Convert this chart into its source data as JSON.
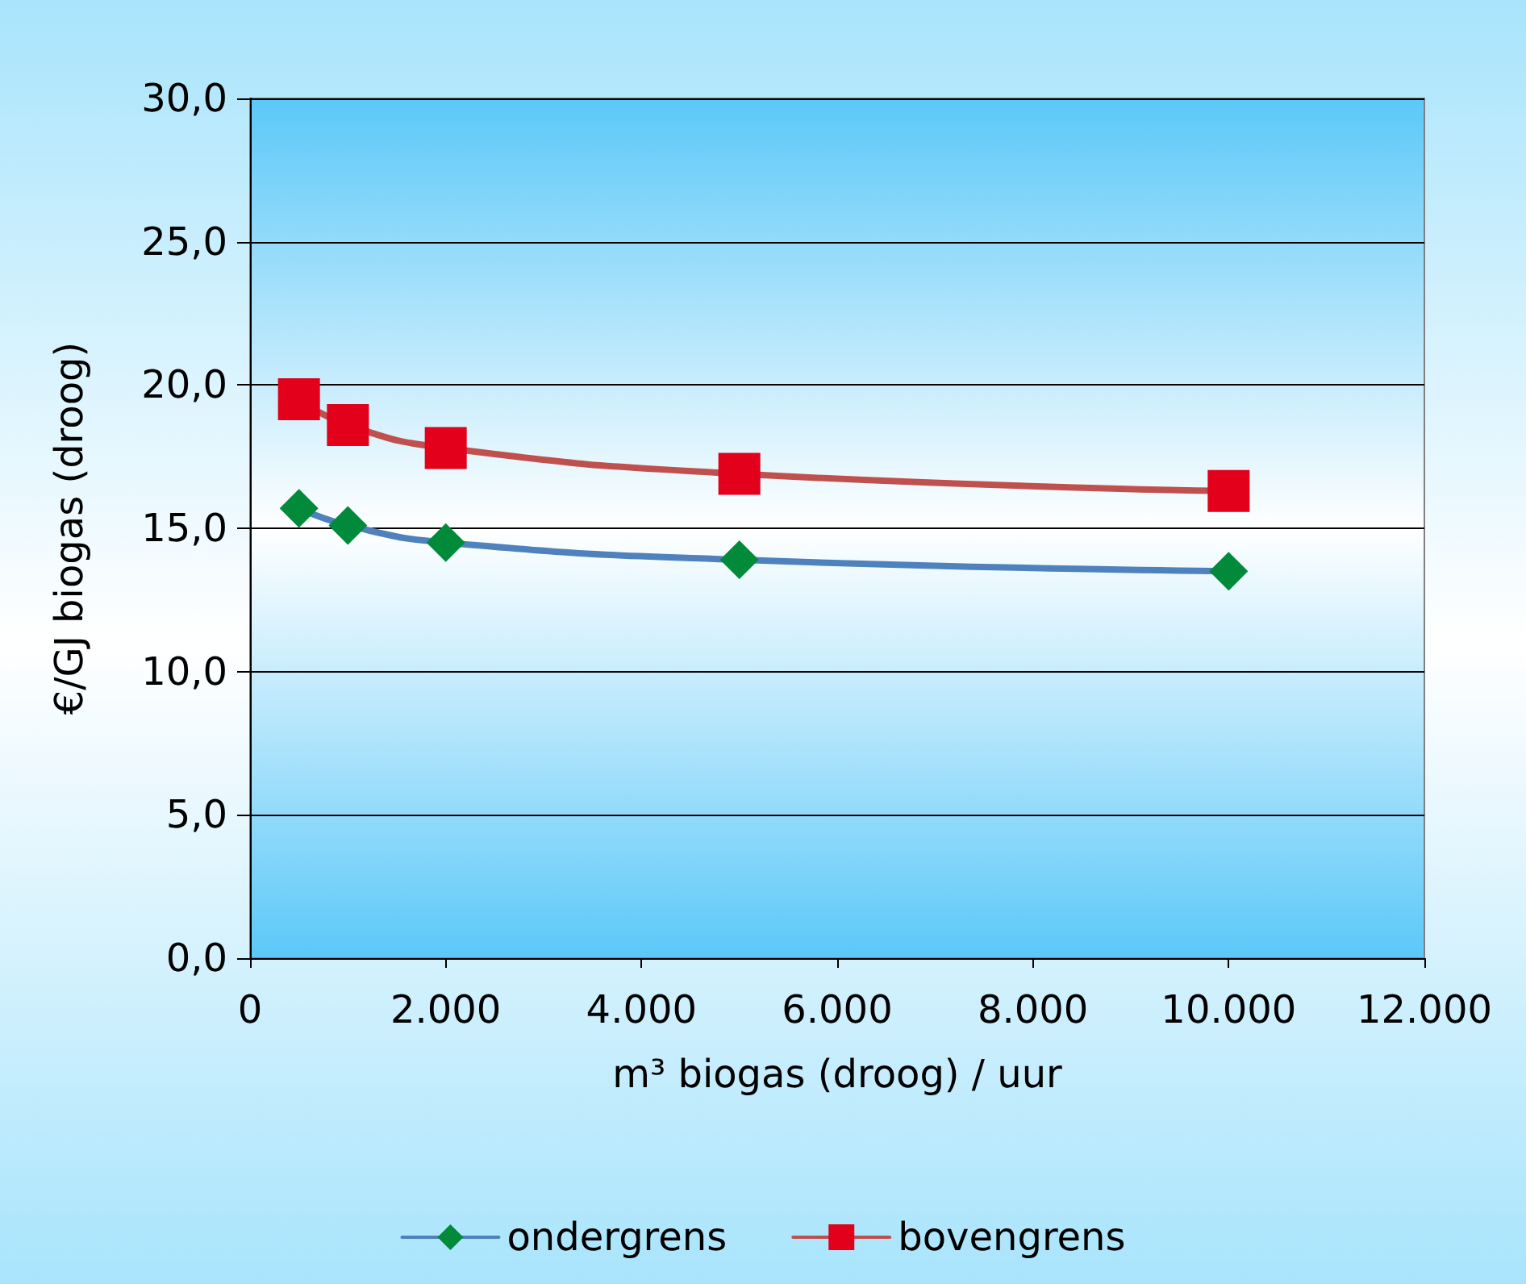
{
  "chart_data": {
    "type": "line",
    "xlabel": "m³ biogas (droog) / uur",
    "ylabel": "€/GJ biogas (droog)",
    "x": [
      500,
      1000,
      2000,
      5000,
      10000
    ],
    "series": [
      {
        "name": "ondergrens",
        "color": "#4f81bd",
        "colors": [
          "#008a3a",
          "#008a3a",
          "#008a3a",
          "#008a3a",
          "#008a3a"
        ],
        "marker": "diamond",
        "values": [
          15.7,
          15.1,
          14.5,
          13.9,
          13.5
        ]
      },
      {
        "name": "bovengrens",
        "color": "#c0504d",
        "colors": [
          "#e2001a",
          "#e2001a",
          "#e2001a",
          "#e2001a",
          "#e2001a"
        ],
        "marker": "square",
        "values": [
          19.5,
          18.6,
          17.8,
          16.9,
          16.3
        ]
      }
    ],
    "xlim": [
      0,
      12000
    ],
    "xticks": [
      0,
      {
        "value": 2000,
        "label": "2.000"
      },
      {
        "value": 4000,
        "label": "4.000"
      },
      {
        "value": 6000,
        "label": "6.000"
      },
      {
        "value": 8000,
        "label": "8.000"
      },
      {
        "value": 10000,
        "label": "10.000"
      },
      {
        "value": 12000,
        "label": "12.000"
      }
    ],
    "ylim": [
      0,
      30
    ],
    "yticks": [
      {
        "value": 0,
        "label": "0,0"
      },
      {
        "value": 5,
        "label": "5,0"
      },
      {
        "value": 10,
        "label": "10,0"
      },
      {
        "value": 15,
        "label": "15,0"
      },
      {
        "value": 20,
        "label": "20,0"
      },
      {
        "value": 25,
        "label": "25,0"
      },
      {
        "value": 30,
        "label": "30,0"
      }
    ],
    "grid": "y",
    "legend": "bottom",
    "line_style": "solid"
  }
}
